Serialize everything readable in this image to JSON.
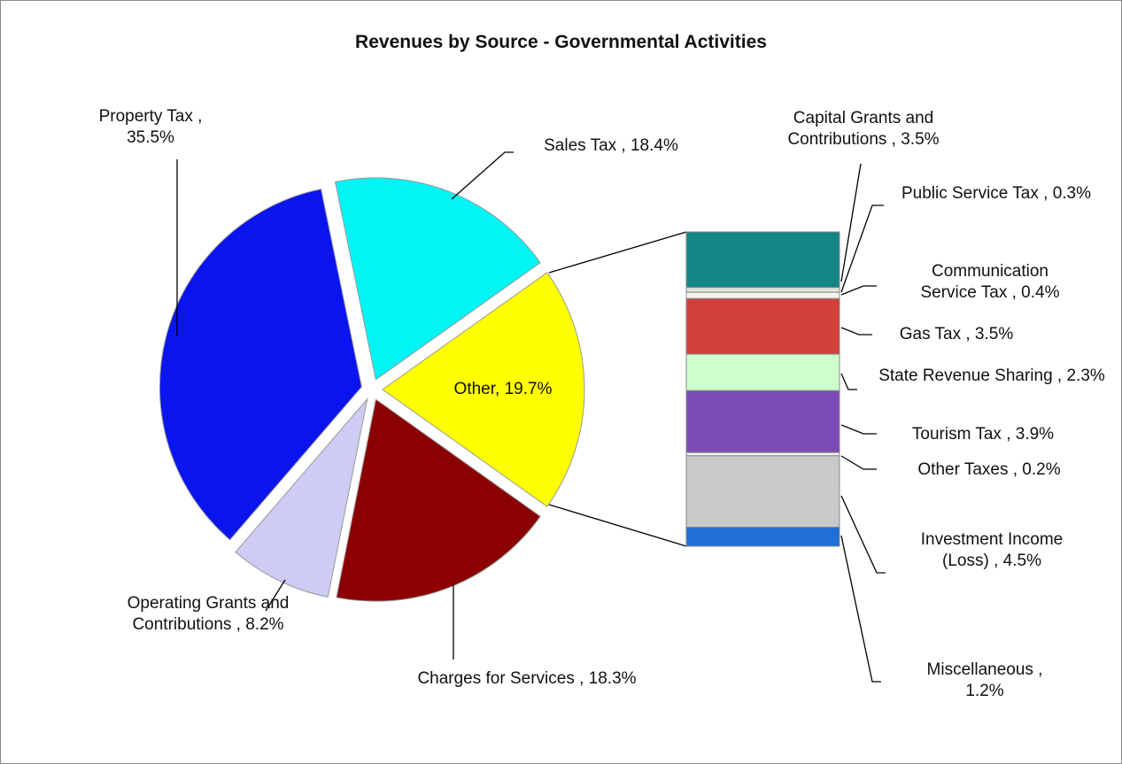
{
  "chart_data": [
    {
      "type": "pie",
      "title": "Revenues by Source - Governmental Activities",
      "categories": [
        "Other, 19.7%",
        "Charges for Services , 18.3%",
        "Operating Grants and Contributions , 8.2%",
        "Property Tax , 35.5%",
        "Sales Tax , 18.4%"
      ],
      "values": [
        19.7,
        18.3,
        8.2,
        35.5,
        18.4
      ],
      "colors": [
        "#ffff00",
        "#8b0000",
        "#ccccf5",
        "#0a14ee",
        "#00f5f5"
      ]
    },
    {
      "type": "bar",
      "categories": [
        "Capital Grants and Contributions , 3.5%",
        "Public Service Tax , 0.3%",
        "Communication Service Tax , 0.4%",
        "Gas Tax , 3.5%",
        "State Revenue Sharing , 2.3%",
        "Tourism Tax , 3.9%",
        "Other Taxes , 0.2%",
        "Investment Income (Loss) , 4.5%",
        "Miscellaneous , 1.2%"
      ],
      "values": [
        3.5,
        0.3,
        0.4,
        3.5,
        2.3,
        3.9,
        0.2,
        4.5,
        1.2
      ],
      "colors": [
        "#138585",
        "#e4e4dc",
        "#f4f4ea",
        "#d2403a",
        "#ccffcc",
        "#7d4db5",
        "#f4f4f4",
        "#c9c9c9",
        "#1f6fd4"
      ]
    }
  ]
}
